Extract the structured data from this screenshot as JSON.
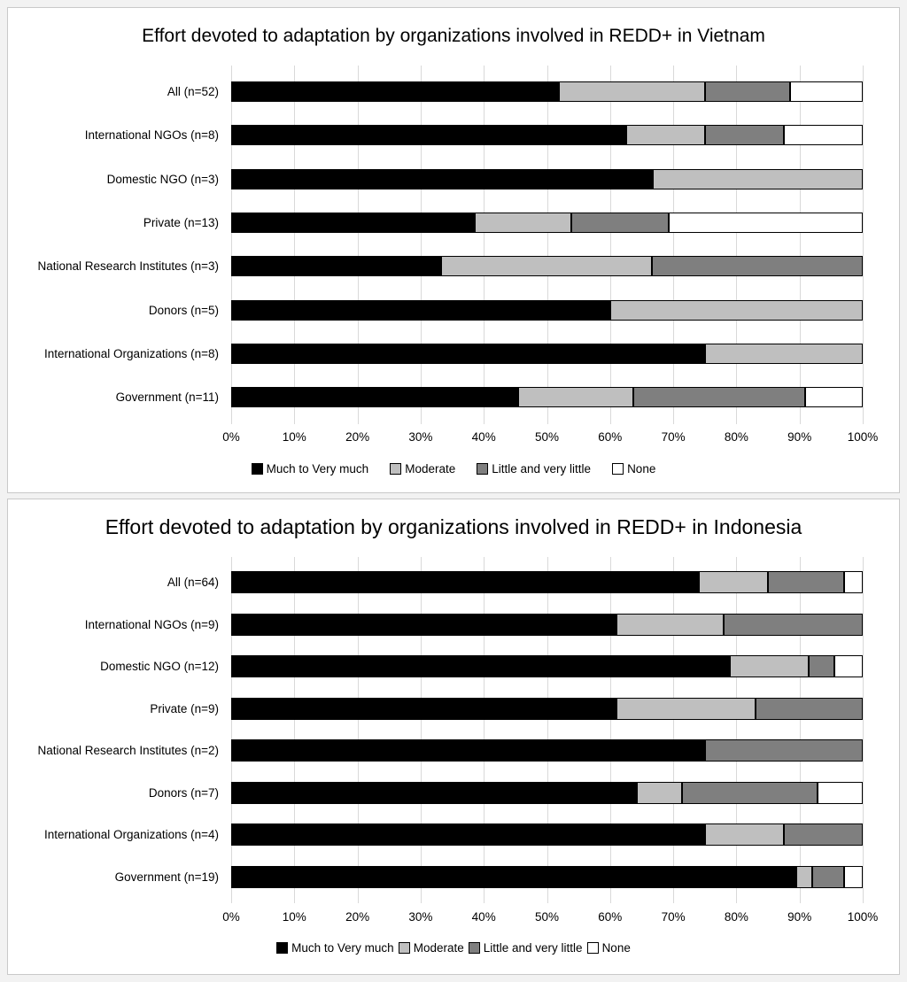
{
  "colors": {
    "much_to_very_much": "#000000",
    "moderate": "#bfbfbf",
    "little_and_very_little": "#7f7f7f",
    "none": "#ffffff",
    "bar_border": "#000000",
    "gridline": "#d9d9d9",
    "panel_border": "#c9c9c9",
    "text": "#000000"
  },
  "chart_data": [
    {
      "type": "bar",
      "variant": "horizontal-stacked-100pct",
      "title": "Effort devoted to adaptation by organizations involved in REDD+ in Vietnam",
      "categories": [
        "All (n=52)",
        "International NGOs (n=8)",
        "Domestic NGO (n=3)",
        "Private (n=13)",
        "National Research Institutes (n=3)",
        "Donors (n=5)",
        "International Organizations (n=8)",
        "Government (n=11)"
      ],
      "series": [
        {
          "name": "Much to Very much",
          "key": "much-to-very-much",
          "color": "#000000",
          "values": [
            51.9,
            62.5,
            66.7,
            38.5,
            33.3,
            60,
            75,
            45.5
          ]
        },
        {
          "name": "Moderate",
          "key": "moderate",
          "color": "#bfbfbf",
          "values": [
            23.1,
            12.5,
            33.3,
            15.4,
            33.3,
            40,
            25,
            18.2
          ]
        },
        {
          "name": "Little and very little",
          "key": "little-and-very-little",
          "color": "#7f7f7f",
          "values": [
            13.5,
            12.5,
            0,
            15.4,
            33.4,
            0,
            0,
            27.2
          ]
        },
        {
          "name": "None",
          "key": "none",
          "color": "#ffffff",
          "values": [
            11.5,
            12.5,
            0,
            30.7,
            0,
            0,
            0,
            9.1
          ]
        }
      ],
      "x_ticks": [
        "0%",
        "10%",
        "20%",
        "30%",
        "40%",
        "50%",
        "60%",
        "70%",
        "80%",
        "90%",
        "100%"
      ],
      "xlim": [
        0,
        100
      ],
      "grid": true,
      "legend_position": "bottom"
    },
    {
      "type": "bar",
      "variant": "horizontal-stacked-100pct",
      "title": "Effort devoted to adaptation by organizations involved in REDD+ in Indonesia",
      "categories": [
        "All (n=64)",
        "International NGOs (n=9)",
        "Domestic NGO (n=12)",
        "Private (n=9)",
        "National Research Institutes (n=2)",
        "Donors (n=7)",
        "International Organizations (n=4)",
        "Government (n=19)"
      ],
      "series": [
        {
          "name": "Much to Very much",
          "key": "much-to-very-much",
          "color": "#000000",
          "values": [
            74,
            61,
            79,
            61,
            75,
            64.3,
            75,
            89.5
          ]
        },
        {
          "name": "Moderate",
          "key": "moderate",
          "color": "#bfbfbf",
          "values": [
            11,
            17,
            12.5,
            22,
            0,
            7.1,
            12.5,
            2.5
          ]
        },
        {
          "name": "Little and very little",
          "key": "little-and-very-little",
          "color": "#7f7f7f",
          "values": [
            12,
            22,
            4,
            17,
            25,
            21.5,
            12.5,
            5
          ]
        },
        {
          "name": "None",
          "key": "none",
          "color": "#ffffff",
          "values": [
            3,
            0,
            4.5,
            0,
            0,
            7.1,
            0,
            3
          ]
        }
      ],
      "x_ticks": [
        "0%",
        "10%",
        "20%",
        "30%",
        "40%",
        "50%",
        "60%",
        "70%",
        "80%",
        "90%",
        "100%"
      ],
      "xlim": [
        0,
        100
      ],
      "grid": true,
      "legend_position": "bottom"
    }
  ]
}
